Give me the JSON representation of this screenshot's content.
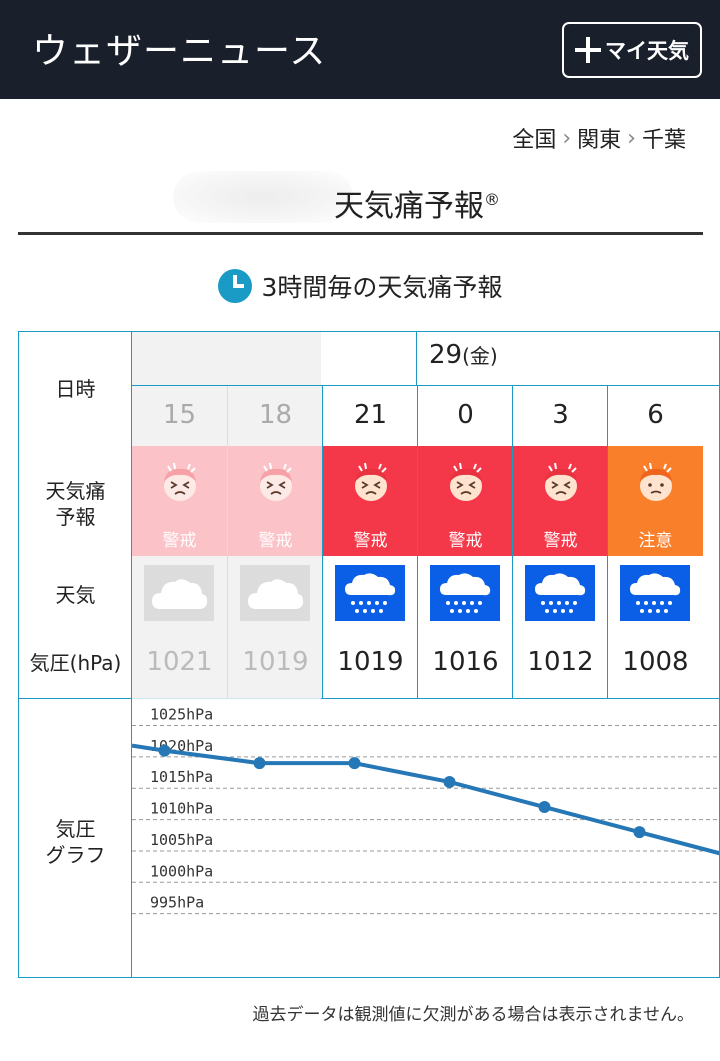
{
  "header": {
    "title": "ウェザーニュース",
    "my_button_label": "マイ天気"
  },
  "breadcrumb": [
    "全国",
    "関東",
    "千葉"
  ],
  "page_title": "天気痛予報",
  "page_title_mark": "®",
  "section_heading": "3時間毎の天気痛予報",
  "row_labels": {
    "datetime": "日時",
    "pain_line1": "天気痛",
    "pain_line2": "予報",
    "weather": "天気",
    "pressure": "気圧(hPa)",
    "graph_line1": "気圧",
    "graph_line2": "グラフ"
  },
  "date": {
    "day": "29",
    "weekday": "(金)"
  },
  "colors": {
    "warning": "#f4384a",
    "warning_past": "#fbc3c8",
    "caution": "#f97f2b",
    "rain": "#0a5fe6",
    "line": "#2677b5",
    "grid_border": "#1a9bc5"
  },
  "slots": [
    {
      "hour": "15",
      "pain": "警戒",
      "pain_level": "warning",
      "weather_icon": "cloud-icon",
      "pressure": "1021",
      "past": true
    },
    {
      "hour": "18",
      "pain": "警戒",
      "pain_level": "warning",
      "weather_icon": "cloud-icon",
      "pressure": "1019",
      "past": true
    },
    {
      "hour": "21",
      "pain": "警戒",
      "pain_level": "warning",
      "weather_icon": "rain-icon",
      "pressure": "1019",
      "past": false
    },
    {
      "hour": "0",
      "pain": "警戒",
      "pain_level": "warning",
      "weather_icon": "rain-icon",
      "pressure": "1016",
      "past": false
    },
    {
      "hour": "3",
      "pain": "警戒",
      "pain_level": "warning",
      "weather_icon": "rain-icon",
      "pressure": "1012",
      "past": false
    },
    {
      "hour": "6",
      "pain": "注意",
      "pain_level": "caution",
      "weather_icon": "rain-icon",
      "pressure": "1008",
      "past": false
    }
  ],
  "chart_data": {
    "type": "line",
    "x": [
      "15",
      "18",
      "21",
      "0",
      "3",
      "6"
    ],
    "series": [
      {
        "values": [
          1021,
          1019,
          1019,
          1016,
          1012,
          1008
        ]
      }
    ],
    "ylim": [
      990,
      1027
    ],
    "y_ticks": [
      "1025hPa",
      "1020hPa",
      "1015hPa",
      "1010hPa",
      "1005hPa",
      "1000hPa",
      "995hPa"
    ],
    "grid": true
  },
  "note": "過去データは観測値に欠測がある場合は表示されません。"
}
